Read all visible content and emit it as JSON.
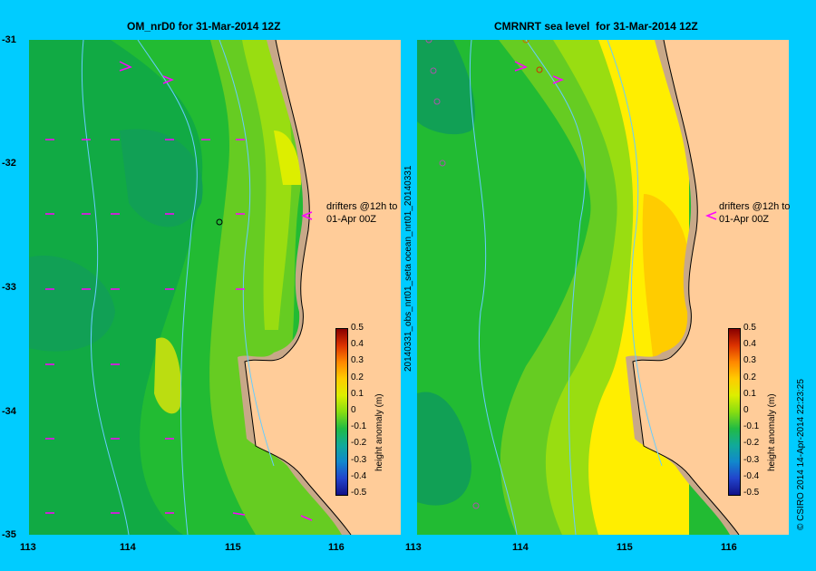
{
  "panels": [
    {
      "title": "OM_nrD0 for 31-Mar-2014 12Z",
      "annotation_line1": "drifters @12h to",
      "annotation_line2": "01-Apr 00Z"
    },
    {
      "title": "CMRNRT sea level  for 31-Mar-2014 12Z",
      "annotation_line1": "drifters @12h to",
      "annotation_line2": "01-Apr 00Z"
    }
  ],
  "axes": {
    "y_ticks": [
      "-31",
      "-32",
      "-33",
      "-34",
      "-35"
    ],
    "x_ticks": [
      "113",
      "114",
      "115",
      "116"
    ]
  },
  "colorbar": {
    "label": "height anomaly (m)",
    "ticks": [
      "0.5",
      "0.4",
      "0.3",
      "0.2",
      "0.1",
      "0",
      "-0.1",
      "-0.2",
      "-0.3",
      "-0.4",
      "-0.5"
    ]
  },
  "side_labels": {
    "left": "20140331_obs_nrt01_seta    ocean_nrt01_20140331",
    "right": "© CSIRO 2014  14-Apr-2014 22:23:25"
  },
  "colors": {
    "background": "#00ccff",
    "land": "#ffcc99",
    "shelf": "#c8a888",
    "drifter": "#ff00ff"
  }
}
